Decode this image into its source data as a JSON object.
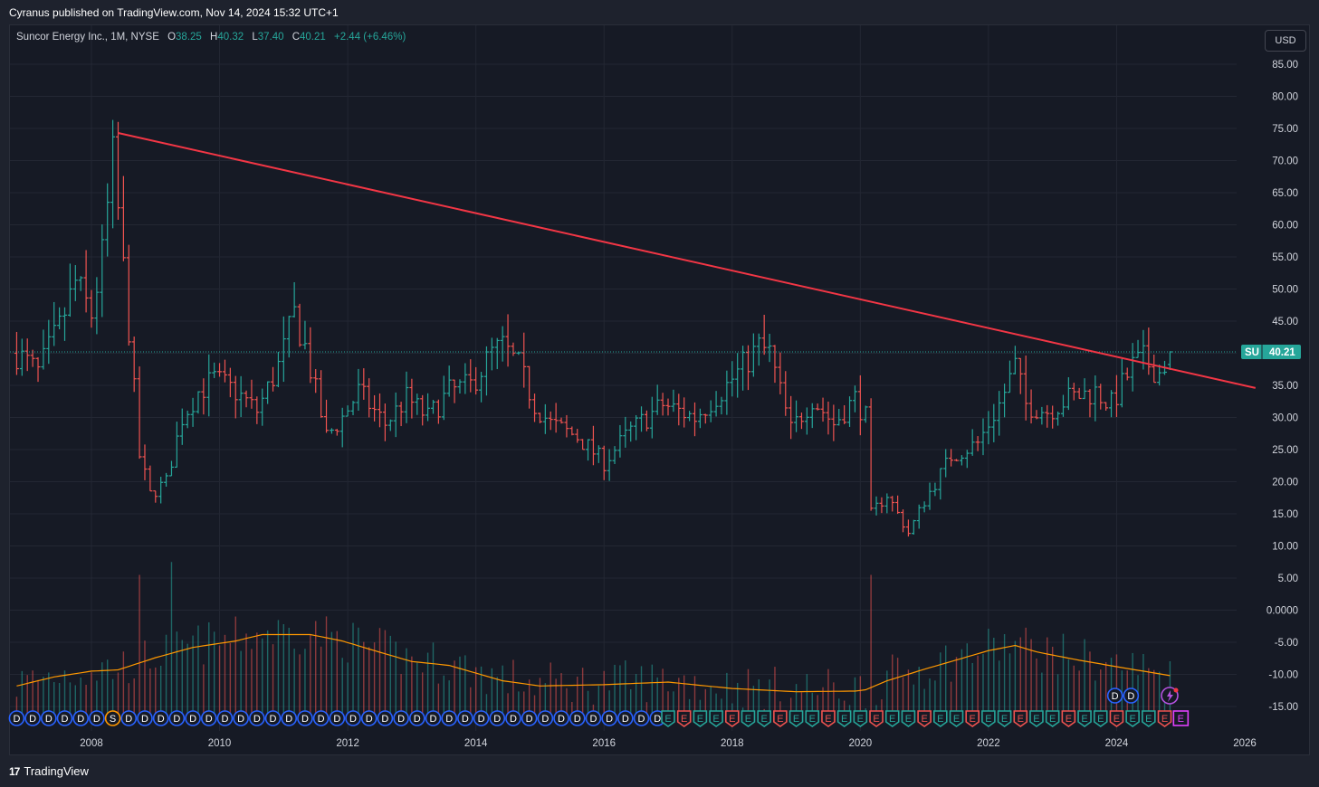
{
  "banner": "Cyranus published on TradingView.com, Nov 14, 2024 15:32 UTC+1",
  "legend": {
    "symbol": "Suncor Energy Inc., 1M, NYSE",
    "open_label": "O",
    "open": "38.25",
    "high_label": "H",
    "high": "40.32",
    "low_label": "L",
    "low": "37.40",
    "close_label": "C",
    "close": "40.21",
    "change": "+2.44 (+6.46%)"
  },
  "currency": "USD",
  "price_tag": {
    "ticker": "SU",
    "price": "40.21"
  },
  "footer": {
    "logo_mark": "17",
    "brand": "TradingView"
  },
  "colors": {
    "up": "#26a69a",
    "down": "#ef5350",
    "trendline": "#f23645",
    "volume_ma": "#ff9800",
    "dividend": "#2962ff",
    "split": "#ff9800"
  },
  "chart_data": {
    "type": "ohlc",
    "interval": "1M",
    "ylim": [
      -17.5,
      88
    ],
    "y_ticks": [
      "85.00",
      "80.00",
      "75.00",
      "70.00",
      "65.00",
      "60.00",
      "55.00",
      "50.00",
      "45.00",
      "40.00",
      "35.00",
      "30.00",
      "25.00",
      "20.00",
      "15.00",
      "10.00",
      "5.00",
      "0.0000",
      "-5.00",
      "-10.00",
      "-15.00"
    ],
    "x_ticks": [
      "2008",
      "2010",
      "2012",
      "2014",
      "2016",
      "2018",
      "2020",
      "2022",
      "2024",
      "2026"
    ],
    "price_anchors": [
      [
        "2006-11",
        40
      ],
      [
        "2007-03",
        37
      ],
      [
        "2007-07",
        44
      ],
      [
        "2007-10",
        51
      ],
      [
        "2008-01",
        46
      ],
      [
        "2008-03",
        55
      ],
      [
        "2008-05",
        70
      ],
      [
        "2008-06",
        62
      ],
      [
        "2008-08",
        44
      ],
      [
        "2008-10",
        24
      ],
      [
        "2008-12",
        18
      ],
      [
        "2009-03",
        20
      ],
      [
        "2009-06",
        30
      ],
      [
        "2009-09",
        34
      ],
      [
        "2009-12",
        36
      ],
      [
        "2010-04",
        34
      ],
      [
        "2010-08",
        31
      ],
      [
        "2010-12",
        38
      ],
      [
        "2011-03",
        46
      ],
      [
        "2011-05",
        41
      ],
      [
        "2011-09",
        27
      ],
      [
        "2011-12",
        30
      ],
      [
        "2012-03",
        34
      ],
      [
        "2012-08",
        29
      ],
      [
        "2012-12",
        33
      ],
      [
        "2013-04",
        30
      ],
      [
        "2013-08",
        34
      ],
      [
        "2013-12",
        35
      ],
      [
        "2014-04",
        40
      ],
      [
        "2014-06",
        41
      ],
      [
        "2014-09",
        38
      ],
      [
        "2014-12",
        32
      ],
      [
        "2015-03",
        29
      ],
      [
        "2015-08",
        27
      ],
      [
        "2016-01",
        23
      ],
      [
        "2016-06",
        28
      ],
      [
        "2016-12",
        32
      ],
      [
        "2017-06",
        30
      ],
      [
        "2017-12",
        35
      ],
      [
        "2018-06",
        41
      ],
      [
        "2018-08",
        40
      ],
      [
        "2018-12",
        28
      ],
      [
        "2019-04",
        33
      ],
      [
        "2019-08",
        29
      ],
      [
        "2019-12",
        33
      ],
      [
        "2020-02",
        30
      ],
      [
        "2020-03",
        15
      ],
      [
        "2020-06",
        18
      ],
      [
        "2020-10",
        12
      ],
      [
        "2021-01",
        17
      ],
      [
        "2021-06",
        24
      ],
      [
        "2021-11",
        26
      ],
      [
        "2022-03",
        32
      ],
      [
        "2022-06",
        38
      ],
      [
        "2022-08",
        32
      ],
      [
        "2022-12",
        31
      ],
      [
        "2023-04",
        33
      ],
      [
        "2023-09",
        34
      ],
      [
        "2023-12",
        32
      ],
      [
        "2024-04",
        38
      ],
      [
        "2024-06",
        39
      ],
      [
        "2024-09",
        37
      ],
      [
        "2024-11",
        40
      ]
    ],
    "trendline": {
      "start": [
        "2008-06",
        74.3
      ],
      "end": [
        "2026-03",
        34.6
      ]
    },
    "last_close": 40.21,
    "volume_ma_anchors": [
      [
        "2006-11",
        -11.8
      ],
      [
        "2007-06",
        -10.4
      ],
      [
        "2008-01",
        -9.5
      ],
      [
        "2008-06",
        -9.3
      ],
      [
        "2009-01",
        -7.4
      ],
      [
        "2009-08",
        -5.8
      ],
      [
        "2010-04",
        -4.8
      ],
      [
        "2010-09",
        -3.8
      ],
      [
        "2011-06",
        -3.8
      ],
      [
        "2011-12",
        -4.8
      ],
      [
        "2012-06",
        -6.3
      ],
      [
        "2013-01",
        -8
      ],
      [
        "2013-08",
        -8.6
      ],
      [
        "2014-06",
        -11
      ],
      [
        "2015-01",
        -11.8
      ],
      [
        "2016-01",
        -11.6
      ],
      [
        "2017-01",
        -11.2
      ],
      [
        "2018-01",
        -12.2
      ],
      [
        "2019-01",
        -12.7
      ],
      [
        "2019-12",
        -12.6
      ],
      [
        "2020-02",
        -12.4
      ],
      [
        "2020-06",
        -11
      ],
      [
        "2021-01",
        -9.2
      ],
      [
        "2021-06",
        -8
      ],
      [
        "2022-01",
        -6.3
      ],
      [
        "2022-06",
        -5.5
      ],
      [
        "2022-10",
        -6.5
      ],
      [
        "2023-06",
        -7.8
      ],
      [
        "2024-01",
        -8.8
      ],
      [
        "2024-11",
        -10.2
      ]
    ],
    "events": [
      {
        "type": "dividend",
        "from": "2006-11",
        "to": "2016-12",
        "every_months": 3,
        "label": "D"
      },
      {
        "type": "split",
        "date": "2008-05",
        "label": "S"
      },
      {
        "type": "earnings",
        "from": "2017-01",
        "to": "2024-10",
        "every_months": 3,
        "label": "E"
      },
      {
        "type": "dividend",
        "date": "2023-11",
        "label": "D"
      },
      {
        "type": "dividend",
        "date": "2024-02",
        "label": "D"
      },
      {
        "type": "earnings_upcoming",
        "date": "2024-12",
        "label": "E"
      }
    ]
  }
}
